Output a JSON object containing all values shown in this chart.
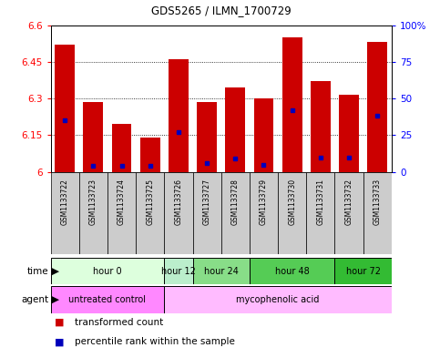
{
  "title": "GDS5265 / ILMN_1700729",
  "samples": [
    "GSM1133722",
    "GSM1133723",
    "GSM1133724",
    "GSM1133725",
    "GSM1133726",
    "GSM1133727",
    "GSM1133728",
    "GSM1133729",
    "GSM1133730",
    "GSM1133731",
    "GSM1133732",
    "GSM1133733"
  ],
  "bar_values": [
    6.52,
    6.285,
    6.195,
    6.14,
    6.46,
    6.285,
    6.345,
    6.3,
    6.55,
    6.37,
    6.315,
    6.53
  ],
  "blue_values": [
    0.35,
    0.04,
    0.04,
    0.04,
    0.27,
    0.06,
    0.09,
    0.05,
    0.42,
    0.1,
    0.1,
    0.38
  ],
  "ymin": 6.0,
  "ymax": 6.6,
  "yticks": [
    6.0,
    6.15,
    6.3,
    6.45,
    6.6
  ],
  "ytick_labels": [
    "6",
    "6.15",
    "6.3",
    "6.45",
    "6.6"
  ],
  "right_yticks": [
    0.0,
    0.25,
    0.5,
    0.75,
    1.0
  ],
  "right_ytick_labels": [
    "0",
    "25",
    "50",
    "75",
    "100%"
  ],
  "bar_color": "#cc0000",
  "blue_color": "#0000bb",
  "background_color": "#ffffff",
  "time_groups": [
    {
      "label": "hour 0",
      "start": 0,
      "end": 3,
      "color": "#ddffdd"
    },
    {
      "label": "hour 12",
      "start": 4,
      "end": 4,
      "color": "#bbeecc"
    },
    {
      "label": "hour 24",
      "start": 5,
      "end": 6,
      "color": "#88dd88"
    },
    {
      "label": "hour 48",
      "start": 7,
      "end": 9,
      "color": "#55cc55"
    },
    {
      "label": "hour 72",
      "start": 10,
      "end": 11,
      "color": "#33bb33"
    }
  ],
  "agent_groups": [
    {
      "label": "untreated control",
      "start": 0,
      "end": 3,
      "color": "#ff88ff"
    },
    {
      "label": "mycophenolic acid",
      "start": 4,
      "end": 11,
      "color": "#ffbbff"
    }
  ],
  "legend_items": [
    {
      "label": "transformed count",
      "color": "#cc0000"
    },
    {
      "label": "percentile rank within the sample",
      "color": "#0000bb"
    }
  ]
}
